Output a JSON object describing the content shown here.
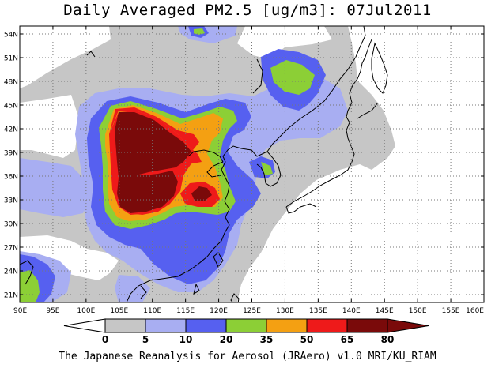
{
  "title": "Daily Averaged PM2.5 [ug/m3]: 07Jul2011",
  "footer": "The Japanese Reanalysis for Aerosol (JRAero) v1.0 MRI/KU_RIAM",
  "map": {
    "lon_range": [
      90,
      160
    ],
    "lat_range": [
      20,
      55
    ],
    "lat_labels": [
      "54N",
      "51N",
      "48N",
      "45N",
      "42N",
      "39N",
      "36N",
      "33N",
      "30N",
      "27N",
      "24N",
      "21N"
    ],
    "lon_labels": [
      "90E",
      "95E",
      "100E",
      "105E",
      "110E",
      "115E",
      "120E",
      "125E",
      "130E",
      "135E",
      "140E",
      "145E",
      "150E",
      "155E",
      "160E"
    ],
    "grid": "dotted"
  },
  "colorbar": {
    "levels": [
      "0",
      "5",
      "10",
      "20",
      "35",
      "50",
      "65",
      "80"
    ],
    "colors": [
      "#ffffff",
      "#c6c6c6",
      "#a8aef2",
      "#5660f0",
      "#8ccf36",
      "#f4a012",
      "#ee1a1a",
      "#7a0a0a"
    ],
    "under_color": "#ffffff",
    "over_color": "#7a0a0a"
  }
}
